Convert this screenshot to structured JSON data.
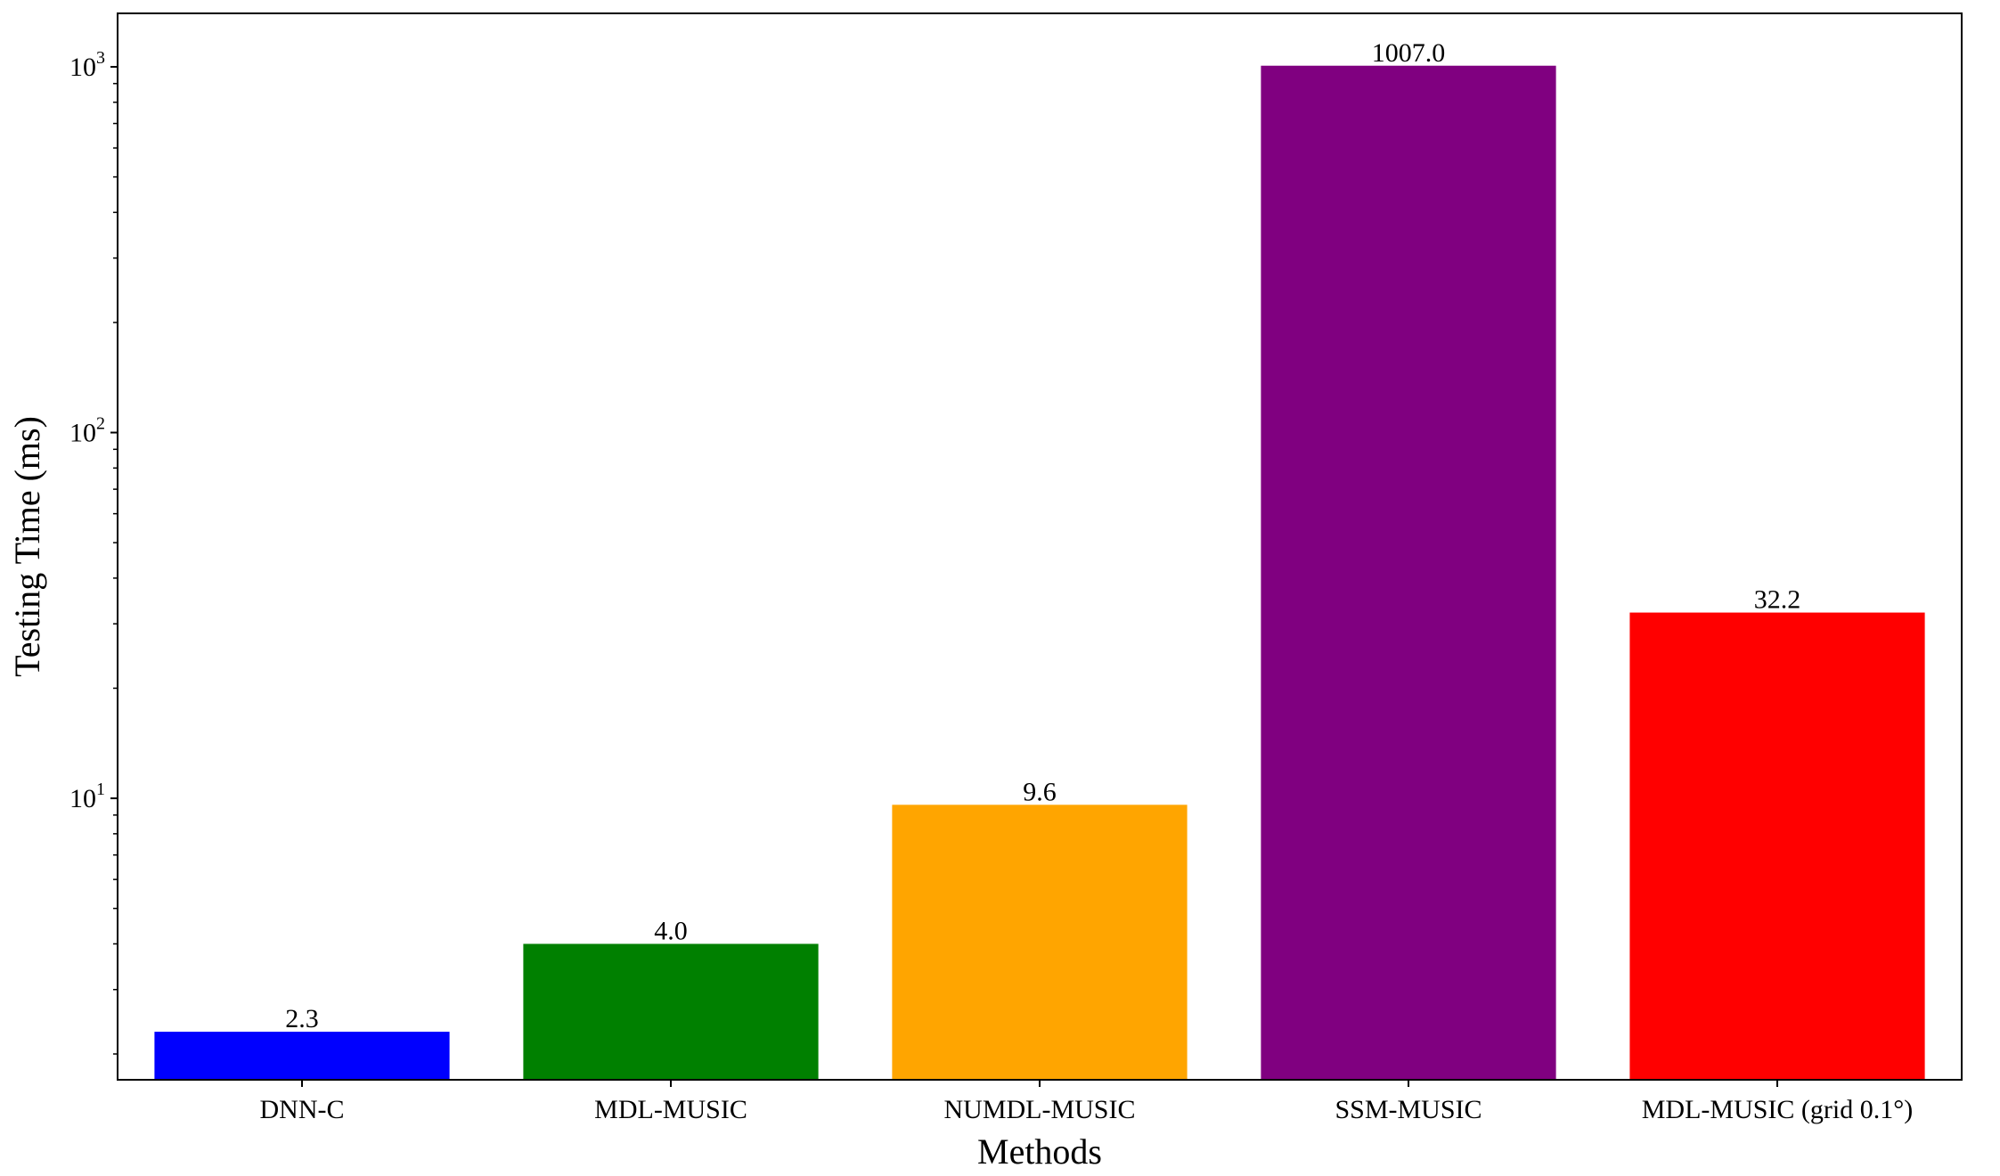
{
  "chart_data": {
    "type": "bar",
    "title": "",
    "xlabel": "Methods",
    "ylabel": "Testing Time (ms)",
    "yscale": "log",
    "ylim": [
      1.7,
      1400
    ],
    "ytick_labels": [
      {
        "base": "10",
        "exp": "1",
        "value": 10
      },
      {
        "base": "10",
        "exp": "2",
        "value": 100
      },
      {
        "base": "10",
        "exp": "3",
        "value": 1000
      }
    ],
    "categories": [
      "DNN-C",
      "MDL-MUSIC",
      "NUMDL-MUSIC",
      "SSM-MUSIC",
      "MDL-MUSIC (grid 0.1°)"
    ],
    "values": [
      2.3,
      4.0,
      9.6,
      1007.0,
      32.2
    ],
    "value_labels": [
      "2.3",
      "4.0",
      "9.6",
      "1007.0",
      "32.2"
    ],
    "colors": [
      "#0000ff",
      "#008000",
      "#ffa500",
      "#800080",
      "#ff0000"
    ],
    "grid": false,
    "legend": "none"
  }
}
